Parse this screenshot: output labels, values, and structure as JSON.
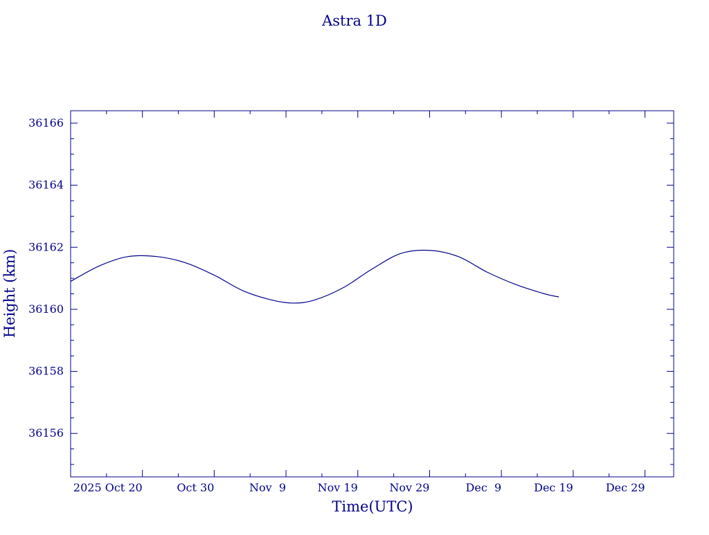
{
  "chart_data": {
    "type": "line",
    "title": "Astra 1D",
    "xlabel": "Time(UTC)",
    "ylabel": "Height (km)",
    "x_tick_labels": [
      "2025 Oct 20",
      "Oct 30",
      "Nov  9",
      "Nov 19",
      "Nov 29",
      "Dec  9",
      "Dec 19",
      "Dec 29"
    ],
    "x_tick_dates": [
      "2025-10-20",
      "2025-10-30",
      "2025-11-09",
      "2025-11-19",
      "2025-11-29",
      "2025-12-09",
      "2025-12-19",
      "2025-12-29"
    ],
    "y_tick_labels": [
      "36156",
      "36158",
      "36160",
      "36162",
      "36164",
      "36166"
    ],
    "y_ticks": [
      36156,
      36158,
      36160,
      36162,
      36164,
      36166
    ],
    "xlim": [
      "2025-10-10",
      "2026-01-02"
    ],
    "ylim": [
      36154.6,
      36166.4
    ],
    "grid": false,
    "series": [
      {
        "x": [
          "2025-10-10",
          "2025-10-14",
          "2025-10-18",
          "2025-10-22",
          "2025-10-26",
          "2025-10-30",
          "2025-11-03",
          "2025-11-07",
          "2025-11-10",
          "2025-11-13",
          "2025-11-17",
          "2025-11-21",
          "2025-11-25",
          "2025-11-29",
          "2025-12-03",
          "2025-12-07",
          "2025-12-11",
          "2025-12-15",
          "2025-12-17"
        ],
        "y": [
          36160.9,
          36161.4,
          36161.7,
          36161.7,
          36161.5,
          36161.1,
          36160.6,
          36160.3,
          36160.2,
          36160.3,
          36160.7,
          36161.3,
          36161.8,
          36161.9,
          36161.7,
          36161.2,
          36160.8,
          36160.5,
          36160.4
        ]
      }
    ]
  }
}
